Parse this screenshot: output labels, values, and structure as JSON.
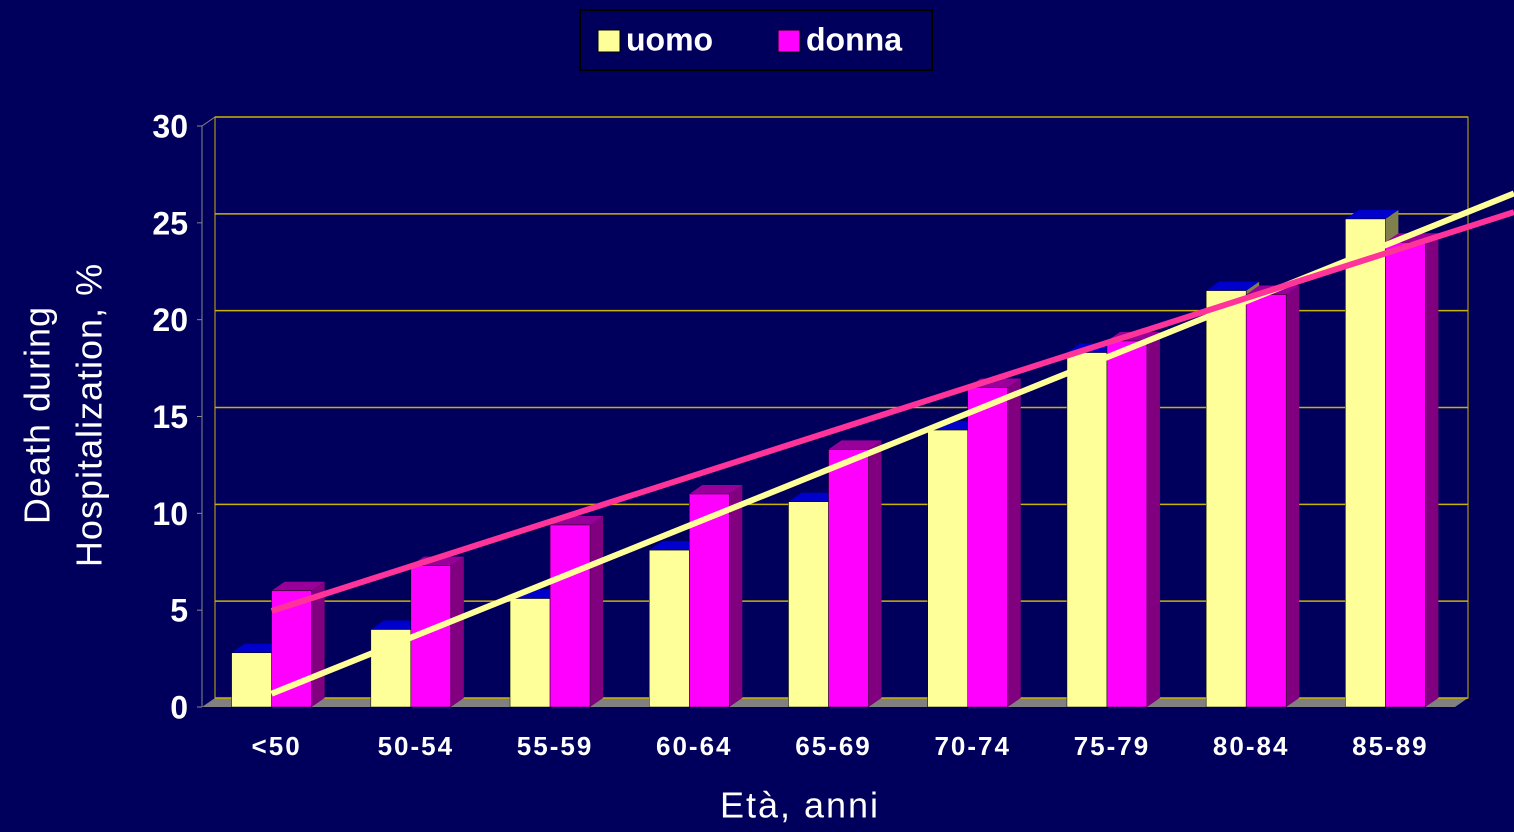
{
  "chart_data": {
    "type": "bar3d",
    "categories": [
      "<50",
      "50-54",
      "55-59",
      "60-64",
      "65-69",
      "70-74",
      "75-79",
      "80-84",
      "85-89"
    ],
    "series": [
      {
        "name": "uomo",
        "color": "#ffff99",
        "trend_color": "#ffff99",
        "values": [
          2.8,
          4.0,
          5.6,
          8.1,
          10.6,
          14.3,
          18.3,
          21.5,
          25.2
        ]
      },
      {
        "name": "donna",
        "color": "#ff00ff",
        "trend_color": "#ff3399",
        "values": [
          6.0,
          7.3,
          9.4,
          11.0,
          13.3,
          16.5,
          18.9,
          21.3,
          24.0
        ]
      }
    ],
    "ylim": [
      0,
      30
    ],
    "yticks": [
      0,
      5,
      10,
      15,
      20,
      25,
      30
    ],
    "ylabel": [
      "Death during",
      "Hospitalization, %"
    ],
    "xlabel": "Età, anni",
    "grid": true,
    "trendline": true,
    "legend": "top"
  }
}
